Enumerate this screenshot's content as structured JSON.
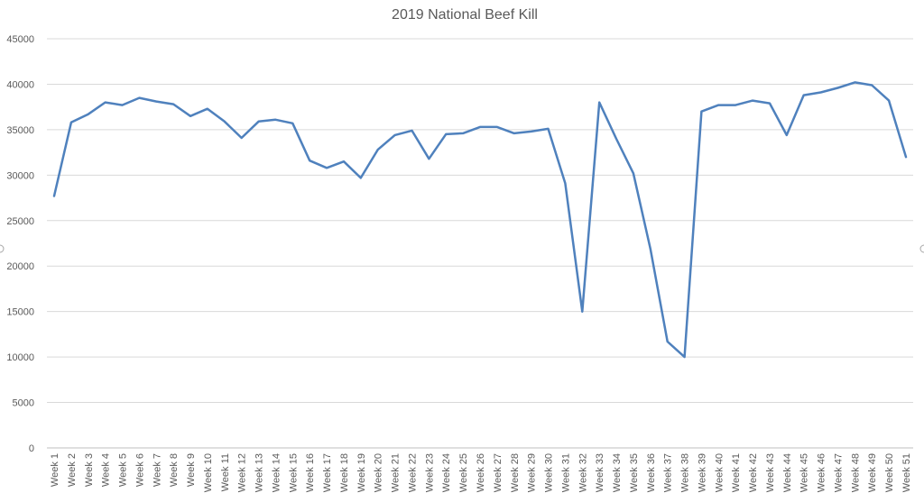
{
  "chart_data": {
    "type": "line",
    "title": "2019 National Beef Kill",
    "xlabel": "",
    "ylabel": "",
    "ylim": [
      0,
      45000
    ],
    "yticks": [
      0,
      5000,
      10000,
      15000,
      20000,
      25000,
      30000,
      35000,
      40000,
      45000
    ],
    "grid": true,
    "legend": "none",
    "categories": [
      "Week 1",
      "Week 2",
      "Week 3",
      "Week 4",
      "Week 5",
      "Week 6",
      "Week 7",
      "Week 8",
      "Week 9",
      "Week 10",
      "Week 11",
      "Week 12",
      "Week 13",
      "Week 14",
      "Week 15",
      "Week 16",
      "Week 17",
      "Week 18",
      "Week 19",
      "Week 20",
      "Week 21",
      "Week 22",
      "Week 23",
      "Week 24",
      "Week 25",
      "Week 26",
      "Week 27",
      "Week 28",
      "Week 29",
      "Week 30",
      "Week 31",
      "Week 32",
      "Week 33",
      "Week 34",
      "Week 35",
      "Week 36",
      "Week 37",
      "Week 38",
      "Week 39",
      "Week 40",
      "Week 41",
      "Week 42",
      "Week 43",
      "Week 44",
      "Week 45",
      "Week 46",
      "Week 47",
      "Week 48",
      "Week 49",
      "Week 50",
      "Week 51"
    ],
    "series": [
      {
        "color": "#4f81bd",
        "values": [
          27700,
          35800,
          36700,
          38000,
          37700,
          38500,
          38100,
          37800,
          36500,
          37300,
          35900,
          34100,
          35900,
          36100,
          35700,
          31600,
          30800,
          31500,
          29700,
          32800,
          34400,
          34900,
          31800,
          34500,
          34600,
          35300,
          35300,
          34600,
          34800,
          35100,
          29100,
          15000,
          38000,
          34000,
          30200,
          21900,
          11700,
          10000,
          37000,
          37700,
          37700,
          38200,
          37900,
          34400,
          38800,
          39100,
          39600,
          40200,
          39900,
          38200,
          32000
        ]
      }
    ]
  }
}
